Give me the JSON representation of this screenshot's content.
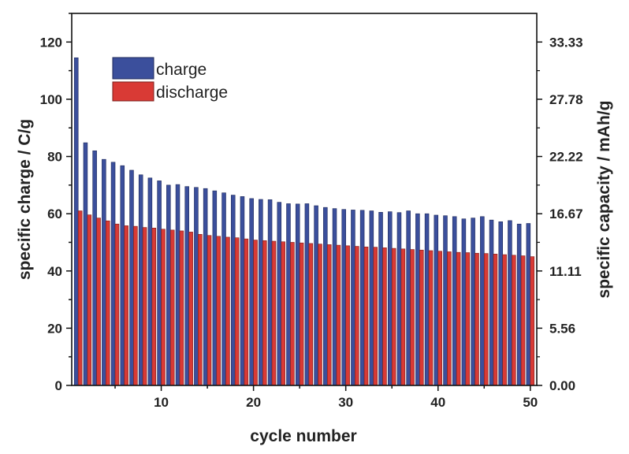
{
  "chart_data": {
    "type": "bar",
    "xlabel": "cycle number",
    "ylabel": "specific charge / C/g",
    "y2label": "specific capacity / mAh/g",
    "xlim": [
      0.3,
      50.7
    ],
    "ylim": [
      0,
      130
    ],
    "x_ticks": [
      "10",
      "20",
      "30",
      "40",
      "50"
    ],
    "y_ticks": [
      "0",
      "20",
      "40",
      "60",
      "80",
      "100",
      "120"
    ],
    "y2_ticks": [
      "0.00",
      "5.56",
      "11.11",
      "16.67",
      "22.22",
      "27.78",
      "33.33"
    ],
    "legend_position": "top-left",
    "grid": false,
    "colors": {
      "charge": "#3b4f9c",
      "discharge": "#d93a35"
    },
    "x": [
      1,
      2,
      3,
      4,
      5,
      6,
      7,
      8,
      9,
      10,
      11,
      12,
      13,
      14,
      15,
      16,
      17,
      18,
      19,
      20,
      21,
      22,
      23,
      24,
      25,
      26,
      27,
      28,
      29,
      30,
      31,
      32,
      33,
      34,
      35,
      36,
      37,
      38,
      39,
      40,
      41,
      42,
      43,
      44,
      45,
      46,
      47,
      48,
      49,
      50
    ],
    "series": [
      {
        "name": "charge",
        "values": [
          114.5,
          84.8,
          82.0,
          79.0,
          78.0,
          76.8,
          75.2,
          73.6,
          72.5,
          71.5,
          70.0,
          70.2,
          69.5,
          69.2,
          68.8,
          68.0,
          67.3,
          66.5,
          66.0,
          65.3,
          65.0,
          64.9,
          64.0,
          63.5,
          63.4,
          63.5,
          62.8,
          62.2,
          61.8,
          61.5,
          61.3,
          61.2,
          61.0,
          60.5,
          60.7,
          60.4,
          61.0,
          60.0,
          60.0,
          59.5,
          59.3,
          59.0,
          58.2,
          58.5,
          59.0,
          57.8,
          57.2,
          57.6,
          56.4,
          56.6
        ]
      },
      {
        "name": "discharge",
        "values": [
          61.0,
          59.6,
          58.5,
          57.5,
          56.4,
          55.8,
          55.6,
          55.2,
          55.0,
          54.6,
          54.3,
          54.0,
          53.6,
          52.8,
          52.4,
          52.1,
          51.8,
          51.6,
          51.2,
          50.8,
          50.6,
          50.4,
          50.2,
          50.0,
          49.8,
          49.6,
          49.4,
          49.2,
          49.0,
          48.8,
          48.6,
          48.4,
          48.3,
          48.1,
          47.9,
          47.7,
          47.5,
          47.3,
          47.1,
          46.9,
          46.7,
          46.5,
          46.4,
          46.2,
          46.1,
          45.9,
          45.7,
          45.5,
          45.3,
          45.0
        ]
      }
    ]
  }
}
